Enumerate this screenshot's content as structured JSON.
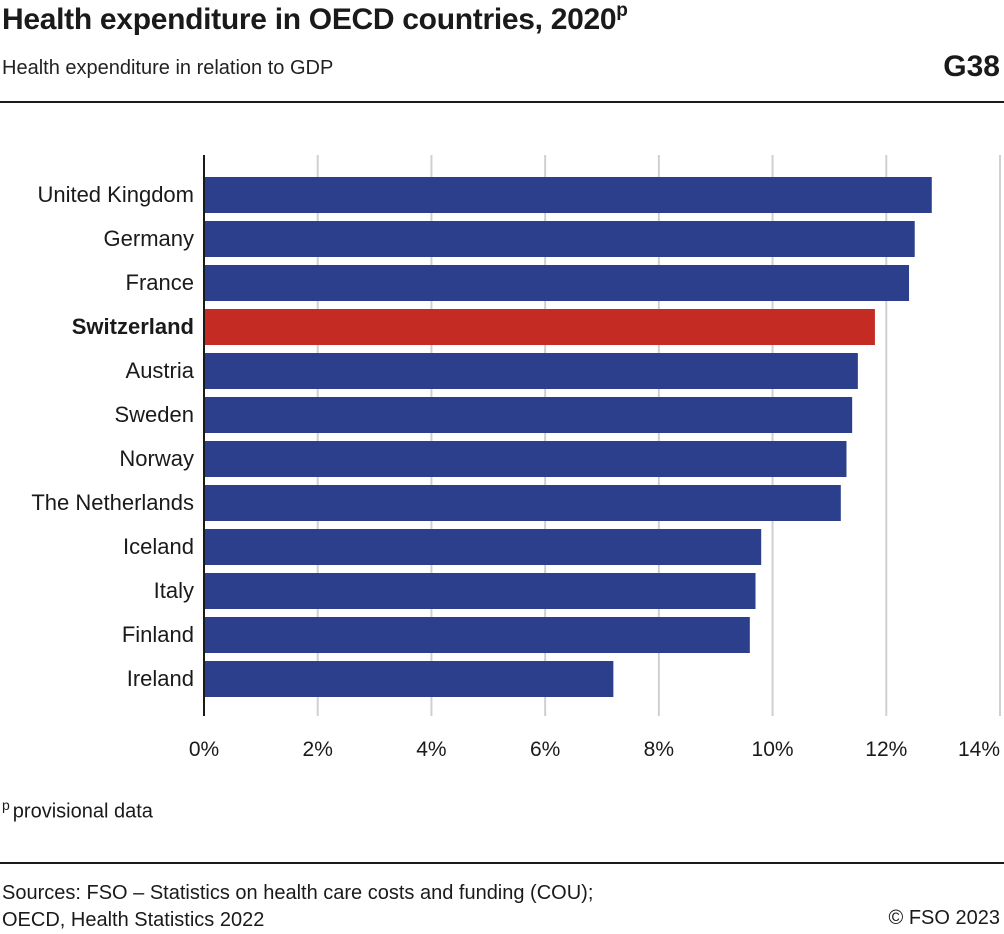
{
  "header": {
    "title": "Health expenditure in OECD countries, 2020",
    "title_superscript": "p",
    "subtitle": "Health expenditure in relation to GDP",
    "graphic_code": "G38"
  },
  "chart_data": {
    "type": "bar",
    "orientation": "horizontal",
    "title": "Health expenditure in OECD countries, 2020",
    "subtitle": "Health expenditure in relation to GDP",
    "xlabel": "",
    "ylabel": "",
    "xlim": [
      0,
      14
    ],
    "x_ticks": [
      0,
      2,
      4,
      6,
      8,
      10,
      12,
      14
    ],
    "x_tick_labels": [
      "0%",
      "2%",
      "4%",
      "6%",
      "8%",
      "10%",
      "12%",
      "14%"
    ],
    "grid": true,
    "categories": [
      "United Kingdom",
      "Germany",
      "France",
      "Switzerland",
      "Austria",
      "Sweden",
      "Norway",
      "The Netherlands",
      "Iceland",
      "Italy",
      "Finland",
      "Ireland"
    ],
    "values": [
      12.8,
      12.5,
      12.4,
      11.8,
      11.5,
      11.4,
      11.3,
      11.2,
      9.8,
      9.7,
      9.6,
      7.2
    ],
    "highlight": "Switzerland",
    "colors": {
      "bar": "#2b3f8c",
      "highlight": "#c42b22",
      "grid": "#d0d0d0",
      "axis": "#1a1a1a"
    }
  },
  "footnote": {
    "marker": "p",
    "text": "provisional data"
  },
  "sources": {
    "line1": "Sources: FSO – Statistics on health care costs and funding (COU);",
    "line2": "OECD, Health Statistics 2022"
  },
  "copyright": "© FSO 2023"
}
